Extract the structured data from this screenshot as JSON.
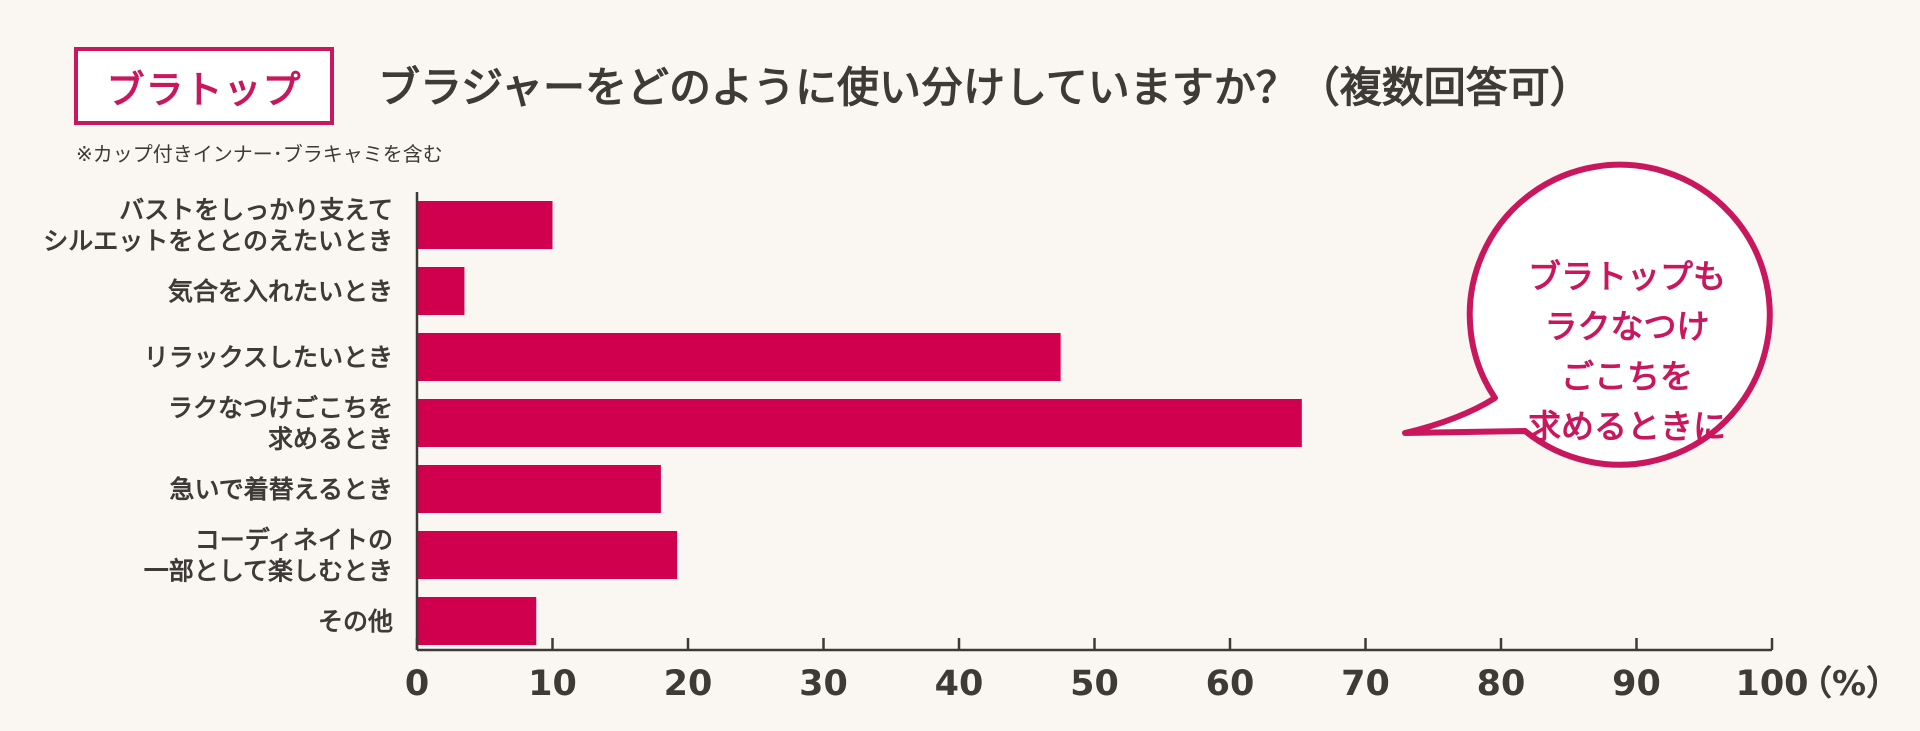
{
  "header": {
    "tag": "ブラトップ",
    "question": "ブラジャーをどのように使い分けしていますか？（複数回答可）",
    "note": "※カップ付きインナー･ブラキャミを含む"
  },
  "colors": {
    "accent": "#c8175d",
    "bar": "#d0004f",
    "text": "#3d3a38",
    "background": "#faf6f2"
  },
  "chart_data": {
    "type": "bar",
    "orientation": "horizontal",
    "categories": [
      [
        "バストをしっかり支えて",
        "シルエットをととのえたいとき"
      ],
      [
        "気合を入れたいとき"
      ],
      [
        "リラックスしたいとき"
      ],
      [
        "ラクなつけごこちを",
        "求めるとき"
      ],
      [
        "急いで着替えるとき"
      ],
      [
        "コーディネイトの",
        "一部として楽しむとき"
      ],
      [
        "その他"
      ]
    ],
    "values": [
      10,
      3.5,
      47.5,
      65.3,
      18,
      19.2,
      8.8
    ],
    "xlim": [
      0,
      100
    ],
    "xticks": [
      "0",
      "10",
      "20",
      "30",
      "40",
      "50",
      "60",
      "70",
      "80",
      "90",
      "100"
    ],
    "unit": "（%）",
    "grid": false,
    "annotation": {
      "lines": [
        "ブラトップも",
        "ラクなつけ",
        "ごこちを",
        "求めるときに"
      ]
    }
  }
}
